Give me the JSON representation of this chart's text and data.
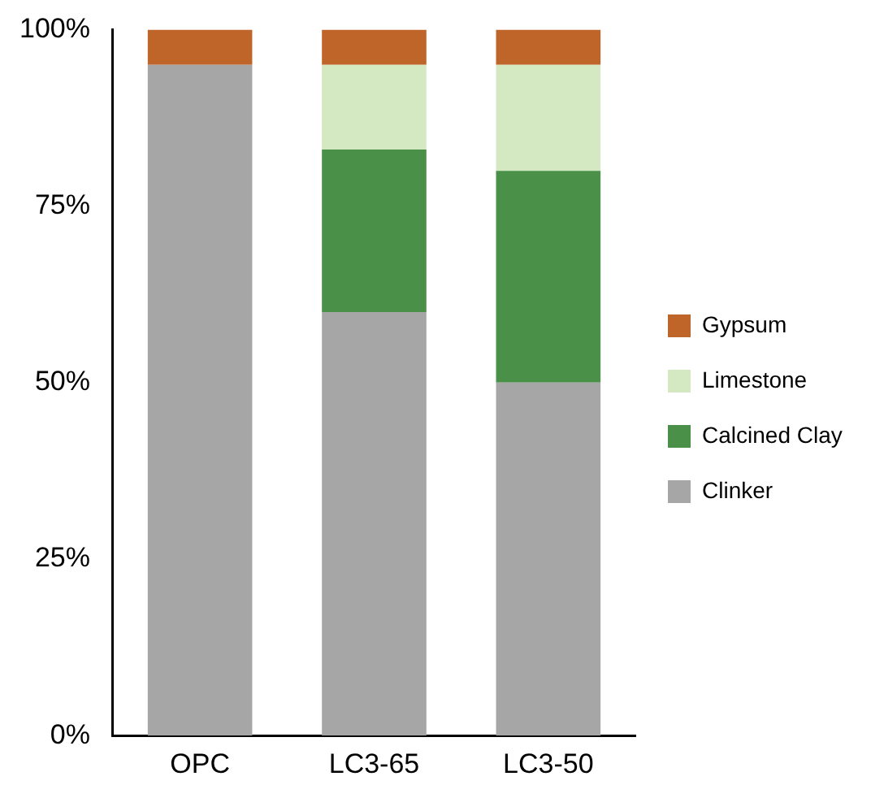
{
  "chart_data": {
    "type": "bar",
    "stacked": true,
    "categories": [
      "OPC",
      "LC3-65",
      "LC3-50"
    ],
    "series": [
      {
        "name": "Clinker",
        "color": "#a6a6a6",
        "values": [
          95,
          60,
          50
        ]
      },
      {
        "name": "Calcined Clay",
        "color": "#4a9048",
        "values": [
          null,
          23,
          30
        ]
      },
      {
        "name": "Limestone",
        "color": "#d4e8c2",
        "values": [
          null,
          12,
          15
        ]
      },
      {
        "name": "Gypsum",
        "color": "#c0652a",
        "values": [
          5,
          5,
          5
        ]
      }
    ],
    "ylim": [
      0,
      100
    ],
    "yticks": [
      {
        "value": 0,
        "label": "0%"
      },
      {
        "value": 25,
        "label": "25%"
      },
      {
        "value": 50,
        "label": "50%"
      },
      {
        "value": 75,
        "label": "75%"
      },
      {
        "value": 100,
        "label": "100%"
      }
    ],
    "grid": false,
    "legend": "right"
  }
}
